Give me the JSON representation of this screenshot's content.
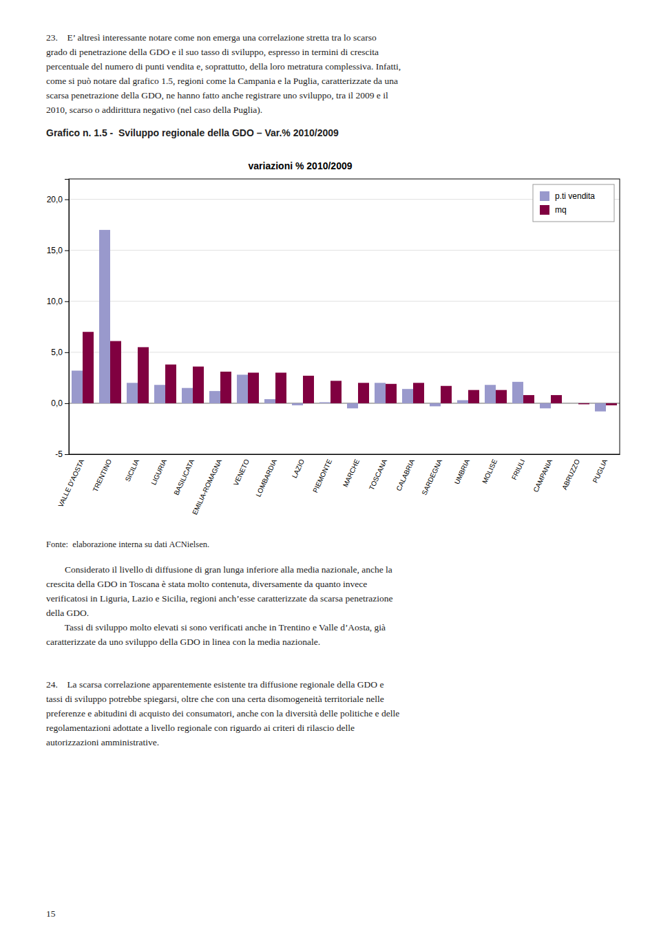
{
  "intro_text": "23.    E’ altresì interessante notare come non emerga una correlazione stretta tra lo scarso\ngrado di penetrazione della GDO e il suo tasso di sviluppo, espresso in termini di crescita\npercentuale del numero di punti vendita e, soprattutto, della loro metratura complessiva. Infatti,\ncome si può notare dal grafico 1.5, regioni come la Campania e la Puglia, caratterizzate da una\nscarsa penetrazione della GDO, ne hanno fatto anche registrare uno sviluppo, tra il 2009 e il\n2010, scarso o addirittura negativo (nel caso della Puglia).",
  "chart_data": {
    "type": "bar",
    "title": "Grafico n. 1.5 -  Sviluppo regionale della GDO – Var.% 2010/2009",
    "subtitle": "variazioni % 2010/2009",
    "categories": [
      "VALLE D'AOSTA",
      "TRENTINO",
      "SICILIA",
      "LIGURIA",
      "BASILICATA",
      "EMILIA-ROMAGNA",
      "VENETO",
      "LOMBARDIA",
      "LAZIO",
      "PIEMONTE",
      "MARCHE",
      "TOSCANA",
      "CALABRIA",
      "SARDEGNA",
      "UMBRIA",
      "MOLISE",
      "FRIULI",
      "CAMPANIA",
      "ABRUZZO",
      "PUGLIA"
    ],
    "series": [
      {
        "name": "p.ti vendita",
        "color": "#9999cc",
        "values": [
          3.2,
          17.0,
          2.0,
          1.8,
          1.5,
          1.2,
          2.8,
          0.4,
          -0.2,
          0.1,
          -0.5,
          2.0,
          1.4,
          -0.3,
          0.3,
          1.8,
          2.1,
          -0.5,
          0.0,
          -0.8
        ]
      },
      {
        "name": "mq",
        "color": "#800040",
        "values": [
          7.0,
          6.1,
          5.5,
          3.8,
          3.6,
          3.1,
          3.0,
          3.0,
          2.7,
          2.2,
          2.0,
          1.9,
          2.0,
          1.7,
          1.3,
          1.3,
          0.8,
          0.8,
          -0.1,
          -0.2
        ]
      }
    ],
    "ylim": [
      -5,
      22
    ],
    "yticks": [
      -5,
      {
        "value": 0,
        "label": "0,0"
      },
      {
        "value": 5,
        "label": "5,0"
      },
      {
        "value": 10,
        "label": "10,0"
      },
      {
        "value": 15,
        "label": "15,0"
      },
      {
        "value": 20,
        "label": "20,0"
      }
    ],
    "grid": true,
    "legend": "top-right"
  },
  "source": "Fonte:  elaborazione interna su dati ACNielsen.",
  "paragraphs": [
    "        Considerato il livello di diffusione di gran lunga inferiore alla media nazionale, anche la\ncrescita della GDO in Toscana è stata molto contenuta, diversamente da quanto invece\nverificatosi in Liguria, Lazio e Sicilia, regioni anch’esse caratterizzate da scarsa penetrazione\ndella GDO.\n        Tassi di sviluppo molto elevati si sono verificati anche in Trentino e Valle d’Aosta, già\ncaratterizzate da uno sviluppo della GDO in linea con la media nazionale.",
    "24.    La scarsa correlazione apparentemente esistente tra diffusione regionale della GDO e\ntassi di sviluppo potrebbe spiegarsi, oltre che con una certa disomogeneità territoriale nelle\npreferenze e abitudini di acquisto dei consumatori, anche con la diversità delle politiche e delle\nregolamentazioni adottate a livello regionale con riguardo ai criteri di rilascio delle\nautorizzazioni amministrative."
  ],
  "page_number": "15"
}
